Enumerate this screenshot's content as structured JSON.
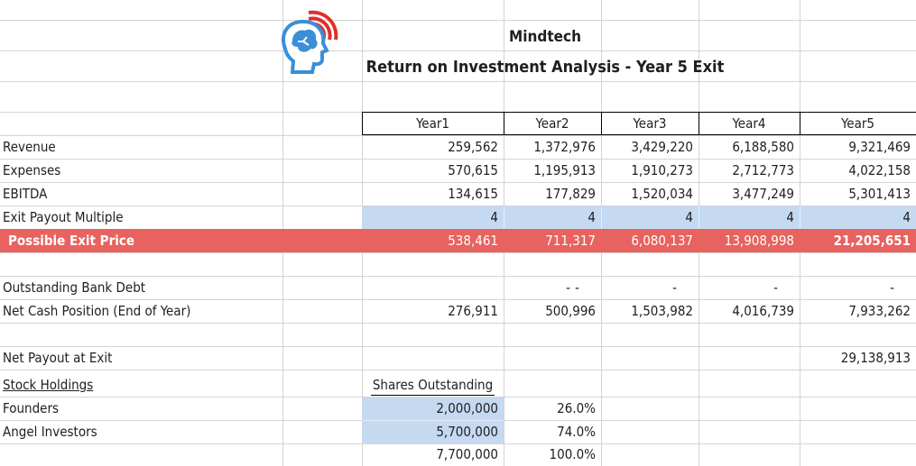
{
  "header": {
    "company": "Mindtech",
    "subtitle": "Return on Investment Analysis - Year 5 Exit",
    "logo_icon": "brain-head-icon",
    "logo_colors": {
      "head": "#3a8fd6",
      "waves": "#e0302b"
    }
  },
  "table": {
    "years": [
      "Year1",
      "Year2",
      "Year3",
      "Year4",
      "Year5"
    ],
    "rows": [
      {
        "label": "Revenue",
        "values": [
          "259,562",
          "1,372,976",
          "3,429,220",
          "6,188,580",
          "9,321,469"
        ]
      },
      {
        "label": "Expenses",
        "values": [
          "570,615",
          "1,195,913",
          "1,910,273",
          "2,712,773",
          "4,022,158"
        ]
      },
      {
        "label": "EBITDA",
        "values": [
          "134,615",
          "177,829",
          "1,520,034",
          "3,477,249",
          "5,301,413"
        ]
      },
      {
        "label": "Exit Payout Multiple",
        "values": [
          "4",
          "4",
          "4",
          "4",
          "4"
        ]
      }
    ],
    "exit": {
      "label": "Possible Exit Price",
      "values": [
        "538,461",
        "711,317",
        "6,080,137",
        "13,908,998",
        "21,205,651"
      ]
    },
    "debt": {
      "label": "Outstanding Bank Debt",
      "values": [
        "-",
        "-",
        "-",
        "-",
        "-"
      ]
    },
    "cash": {
      "label": "Net Cash Position (End of Year)",
      "values": [
        "276,911",
        "500,996",
        "1,503,982",
        "4,016,739",
        "7,933,262"
      ]
    },
    "net_payout": {
      "label": "Net Payout at Exit",
      "value": "29,138,913"
    }
  },
  "stock": {
    "title": "Stock Holdings",
    "shares_header": "Shares Outstanding",
    "holders": [
      {
        "label": "Founders",
        "shares": "2,000,000",
        "pct": "26.0%"
      },
      {
        "label": "Angel Investors",
        "shares": "5,700,000",
        "pct": "74.0%"
      }
    ],
    "total_shares": "7,700,000",
    "total_pct": "100.0%"
  },
  "colors": {
    "exit_row": "#e8625f",
    "input_cells": "#c5d9f1",
    "gridline": "#d4d4d4"
  }
}
